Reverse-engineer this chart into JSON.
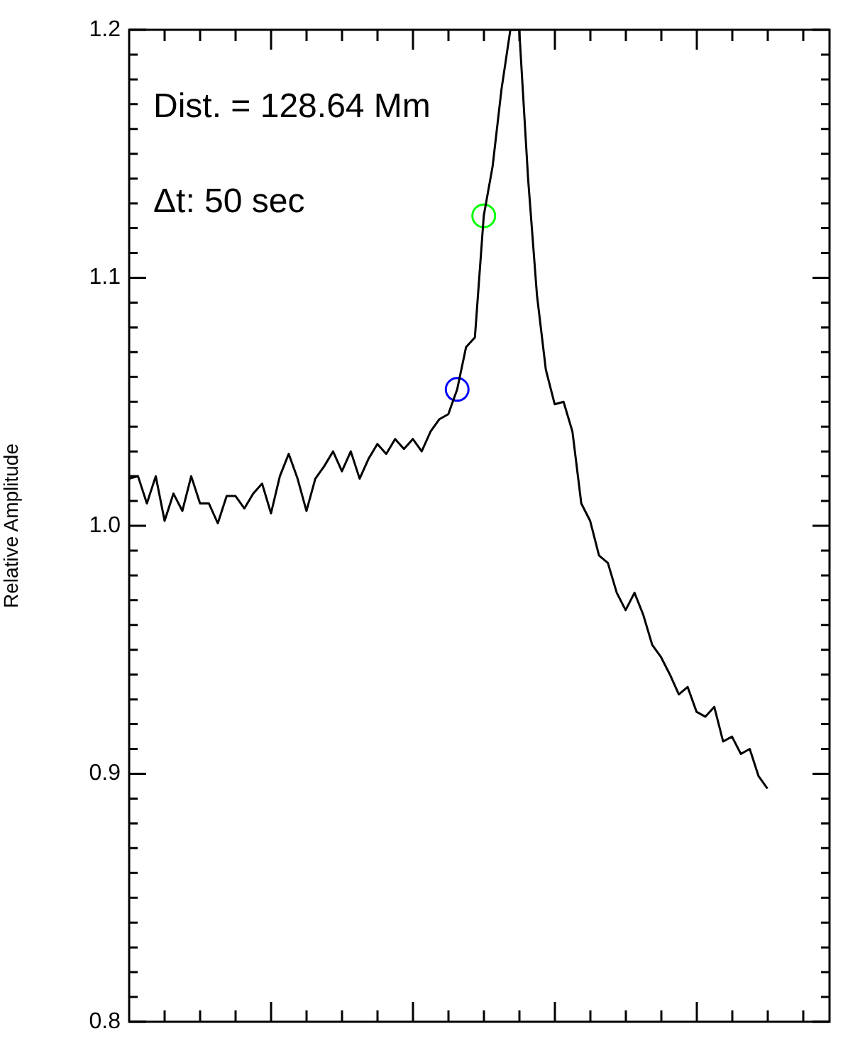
{
  "chart_data": {
    "type": "line",
    "ylabel": "Relative Amplitude",
    "annotations": [
      "Dist. = 128.64 Mm",
      "Δt: 50 sec"
    ],
    "categories": [
      null,
      null,
      null,
      null,
      null,
      null,
      null,
      null,
      null,
      null,
      null,
      null,
      null,
      null,
      null,
      null,
      null,
      null,
      null,
      null,
      null,
      null,
      null,
      null,
      null,
      null,
      null,
      null,
      null,
      null,
      null,
      null,
      null,
      null,
      null,
      null,
      null,
      null,
      null,
      null,
      null,
      null,
      null,
      null,
      null,
      null,
      null,
      null,
      null,
      null,
      null,
      null,
      null,
      null,
      null,
      null,
      null,
      null,
      null,
      null,
      null,
      null,
      null,
      null,
      null,
      null,
      null,
      null,
      null,
      null,
      null,
      null,
      null,
      null,
      null,
      null,
      null,
      null,
      null,
      null
    ],
    "ylim": [
      0.8,
      1.2
    ],
    "yticks": [
      0.8,
      {
        "value": 0.81,
        "label": null
      },
      {
        "value": 0.82,
        "label": null
      },
      {
        "value": 0.83,
        "label": null
      },
      {
        "value": 0.84,
        "label": null
      },
      {
        "value": 0.85,
        "label": null
      },
      {
        "value": 0.86,
        "label": null
      },
      {
        "value": 0.87,
        "label": null
      },
      {
        "value": 0.88,
        "label": null
      },
      {
        "value": 0.89,
        "label": null
      },
      0.9,
      {
        "value": 0.91,
        "label": null
      },
      {
        "value": 0.92,
        "label": null
      },
      {
        "value": 0.93,
        "label": null
      },
      {
        "value": 0.94,
        "label": null
      },
      {
        "value": 0.95,
        "label": null
      },
      {
        "value": 0.96,
        "label": null
      },
      {
        "value": 0.97,
        "label": null
      },
      {
        "value": 0.98,
        "label": null
      },
      {
        "value": 0.99,
        "label": null
      },
      {
        "value": 1.0,
        "label": "1.0"
      },
      {
        "value": 1.01,
        "label": null
      },
      {
        "value": 1.02,
        "label": null
      },
      {
        "value": 1.03,
        "label": null
      },
      {
        "value": 1.04,
        "label": null
      },
      {
        "value": 1.05,
        "label": null
      },
      {
        "value": 1.06,
        "label": null
      },
      {
        "value": 1.07,
        "label": null
      },
      {
        "value": 1.08,
        "label": null
      },
      {
        "value": 1.09,
        "label": null
      },
      1.1,
      {
        "value": 1.11,
        "label": null
      },
      {
        "value": 1.12,
        "label": null
      },
      {
        "value": 1.13,
        "label": null
      },
      {
        "value": 1.14,
        "label": null
      },
      {
        "value": 1.15,
        "label": null
      },
      {
        "value": 1.16,
        "label": null
      },
      {
        "value": 1.17,
        "label": null
      },
      {
        "value": 1.18,
        "label": null
      },
      {
        "value": 1.19,
        "label": null
      },
      1.2
    ],
    "tick_labels": "y",
    "marker": "none",
    "line_style": "solid",
    "series": [
      {
        "color": "#000000",
        "values": [
          1.019,
          1.02,
          1.009,
          1.02,
          1.002,
          1.013,
          1.006,
          1.02,
          1.009,
          1.009,
          1.001,
          1.012,
          1.012,
          1.007,
          1.013,
          1.017,
          1.005,
          1.02,
          1.029,
          1.019,
          1.006,
          1.019,
          1.024,
          1.03,
          1.022,
          1.03,
          1.019,
          1.027,
          1.033,
          1.029,
          1.035,
          1.031,
          1.035,
          1.03,
          1.038,
          1.043,
          1.045,
          1.055,
          1.072,
          1.076,
          1.125,
          1.145,
          1.176,
          1.2,
          1.2,
          1.14,
          1.093,
          1.063,
          1.049,
          1.05,
          1.038,
          1.009,
          1.002,
          0.988,
          0.985,
          0.973,
          0.966,
          0.973,
          0.964,
          0.952,
          0.947,
          0.94,
          0.932,
          0.935,
          0.925,
          0.923,
          0.927,
          0.913,
          0.915,
          0.908,
          0.91,
          0.899,
          0.894,
          null,
          null,
          null,
          null,
          null,
          null,
          null
        ]
      },
      {
        "type": "scatter",
        "marker": "circle",
        "color": "#0000ff",
        "values": [
          null,
          null,
          null,
          null,
          null,
          null,
          null,
          null,
          null,
          null,
          null,
          null,
          null,
          null,
          null,
          null,
          null,
          null,
          null,
          null,
          null,
          null,
          null,
          null,
          null,
          null,
          null,
          null,
          null,
          null,
          null,
          null,
          null,
          null,
          null,
          null,
          null,
          1.055,
          null,
          null,
          null,
          null,
          null,
          null,
          null,
          null,
          null,
          null,
          null,
          null,
          null,
          null,
          null,
          null,
          null,
          null,
          null,
          null,
          null,
          null,
          null,
          null,
          null,
          null,
          null,
          null,
          null,
          null,
          null,
          null,
          null,
          null,
          null,
          null,
          null,
          null,
          null,
          null,
          null,
          null
        ]
      },
      {
        "type": "scatter",
        "marker": "circle",
        "color": "#00ff00",
        "values": [
          null,
          null,
          null,
          null,
          null,
          null,
          null,
          null,
          null,
          null,
          null,
          null,
          null,
          null,
          null,
          null,
          null,
          null,
          null,
          null,
          null,
          null,
          null,
          null,
          null,
          null,
          null,
          null,
          null,
          null,
          null,
          null,
          null,
          null,
          null,
          null,
          null,
          null,
          null,
          null,
          1.125,
          null,
          null,
          null,
          null,
          null,
          null,
          null,
          null,
          null,
          null,
          null,
          null,
          null,
          null,
          null,
          null,
          null,
          null,
          null,
          null,
          null,
          null,
          null,
          null,
          null,
          null,
          null,
          null,
          null,
          null,
          null,
          null,
          null,
          null,
          null,
          null,
          null,
          null,
          null
        ]
      }
    ]
  }
}
